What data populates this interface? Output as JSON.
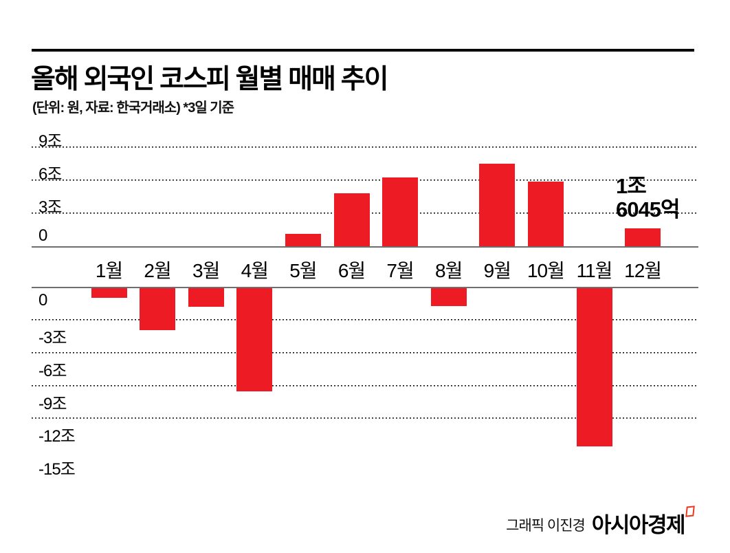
{
  "header": {
    "title": "올해 외국인 코스피 월별 매매 추이",
    "subtitle": "(단위: 원, 자료: 한국거래소) *3일 기준"
  },
  "footer": {
    "credit": "그래픽 이진경",
    "publisher": "아시아경제"
  },
  "chart_data": {
    "type": "bar",
    "title": "올해 외국인 코스피 월별 매매 추이",
    "unit_note": "(단위: 원, 자료: 한국거래소) *3일 기준",
    "unit": "조원",
    "categories": [
      "1월",
      "2월",
      "3월",
      "4월",
      "5월",
      "6월",
      "7월",
      "8월",
      "9월",
      "10월",
      "11월",
      "12월"
    ],
    "values": [
      -0.9,
      -3.8,
      -1.7,
      -9.4,
      1.1,
      4.8,
      6.3,
      -1.6,
      7.5,
      5.9,
      -14.4,
      1.6045
    ],
    "bar_color": "#ed1c24",
    "grid_style": "dotted",
    "positive_axis": {
      "ticks": [
        {
          "label": "9조",
          "value": 9,
          "line": true
        },
        {
          "label": "6조",
          "value": 6,
          "line": true
        },
        {
          "label": "3조",
          "value": 3,
          "line": true
        },
        {
          "label": "0",
          "value": 0,
          "line": false
        }
      ],
      "ylim": [
        0,
        9.5
      ]
    },
    "negative_axis": {
      "ticks": [
        {
          "label": "0",
          "value": 0,
          "line": false
        },
        {
          "label": "-3조",
          "value": -3,
          "line": true
        },
        {
          "label": "-6조",
          "value": -6,
          "line": true
        },
        {
          "label": "-9조",
          "value": -9,
          "line": true
        },
        {
          "label": "-12조",
          "value": -12,
          "line": true
        },
        {
          "label": "-15조",
          "value": -15,
          "line": false
        }
      ],
      "ylim": [
        -15.5,
        0
      ]
    },
    "annotation": {
      "category": "12월",
      "text_lines": [
        "1조",
        "6045억"
      ]
    }
  }
}
